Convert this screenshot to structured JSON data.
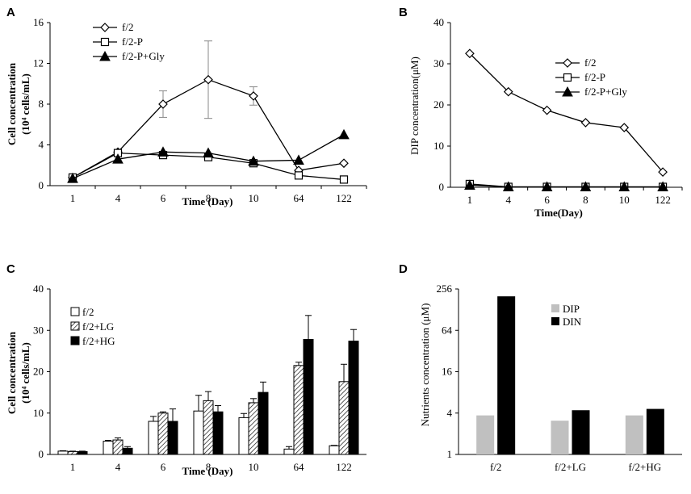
{
  "chart_data": [
    {
      "panel": "A",
      "type": "line",
      "categories": [
        "1",
        "4",
        "6",
        "8",
        "10",
        "64",
        "122"
      ],
      "xlabel": "Time (Day)",
      "ylabel_main": "Cell concentration",
      "ylabel_unit": "(10⁴ cells/mL)",
      "ylim": [
        0,
        16
      ],
      "yticks": [
        "0",
        "4",
        "8",
        "12",
        "16"
      ],
      "series": [
        {
          "name": "f/2",
          "marker": "diamond",
          "values": [
            0.8,
            3.3,
            8.0,
            10.4,
            8.8,
            1.5,
            2.2
          ],
          "err": [
            0,
            0,
            1.3,
            3.8,
            0.9,
            0,
            0
          ]
        },
        {
          "name": "f/2-P",
          "marker": "square",
          "values": [
            0.8,
            3.2,
            3.0,
            2.8,
            2.2,
            1.0,
            0.6
          ],
          "err": [
            0,
            0,
            0,
            0,
            0,
            0,
            0
          ]
        },
        {
          "name": "f/2-P+Gly",
          "marker": "triangle",
          "values": [
            0.7,
            2.6,
            3.3,
            3.2,
            2.4,
            2.5,
            5.0
          ],
          "err": [
            0,
            0,
            0,
            0,
            0,
            0,
            0
          ]
        }
      ]
    },
    {
      "panel": "B",
      "type": "line",
      "categories": [
        "1",
        "4",
        "6",
        "8",
        "10",
        "122"
      ],
      "xlabel": "Time(Day)",
      "ylabel": "DIP  concentration(μM)",
      "ylim": [
        0,
        40
      ],
      "yticks": [
        "0",
        "10",
        "20",
        "30",
        "40"
      ],
      "series": [
        {
          "name": "f/2",
          "marker": "diamond",
          "values": [
            32.5,
            23.2,
            18.7,
            15.7,
            14.5,
            3.7
          ]
        },
        {
          "name": "f/2-P",
          "marker": "square",
          "values": [
            0.8,
            0.1,
            0.1,
            0.1,
            0.1,
            0.1
          ]
        },
        {
          "name": "f/2-P+Gly",
          "marker": "triangle",
          "values": [
            0.5,
            0.1,
            0.1,
            0.1,
            0.1,
            0.1
          ]
        }
      ]
    },
    {
      "panel": "C",
      "type": "bar",
      "categories": [
        "1",
        "4",
        "6",
        "8",
        "10",
        "64",
        "122"
      ],
      "xlabel": "Time (Day)",
      "ylabel_main": "Cell concentration",
      "ylabel_unit": "(10⁴ cells/mL)",
      "ylim": [
        0,
        40
      ],
      "yticks": [
        "0",
        "10",
        "20",
        "30",
        "40"
      ],
      "series": [
        {
          "name": "f/2",
          "fill": "white",
          "values": [
            0.8,
            3.2,
            8.0,
            10.5,
            8.9,
            1.3,
            2.1
          ],
          "err": [
            0.1,
            0.2,
            1.2,
            3.8,
            1.0,
            0.6,
            0.1
          ]
        },
        {
          "name": "f/2+LG",
          "fill": "hatch",
          "values": [
            0.7,
            3.5,
            10.0,
            13.0,
            12.5,
            21.5,
            17.6
          ],
          "err": [
            0.1,
            0.5,
            0.3,
            2.2,
            1.0,
            0.8,
            4.2
          ]
        },
        {
          "name": "f/2+HG",
          "fill": "black",
          "values": [
            0.7,
            1.5,
            8.0,
            10.3,
            15.0,
            27.8,
            27.4
          ],
          "err": [
            0.1,
            0.4,
            3.0,
            1.5,
            2.5,
            5.8,
            2.8
          ]
        }
      ]
    },
    {
      "panel": "D",
      "type": "bar",
      "scale": "log2",
      "categories": [
        "f/2",
        "f/2+LG",
        "f/2+HG"
      ],
      "ylabel": "Nutrients concentration (μM)",
      "ylim": [
        1,
        256
      ],
      "yticks": [
        "1",
        "4",
        "16",
        "64",
        "256"
      ],
      "series": [
        {
          "name": "DIP",
          "color": "#c0c0c0",
          "values": [
            3.7,
            3.1,
            3.7
          ]
        },
        {
          "name": "DIN",
          "color": "#000000",
          "values": [
            200,
            4.4,
            4.6
          ]
        }
      ]
    }
  ]
}
